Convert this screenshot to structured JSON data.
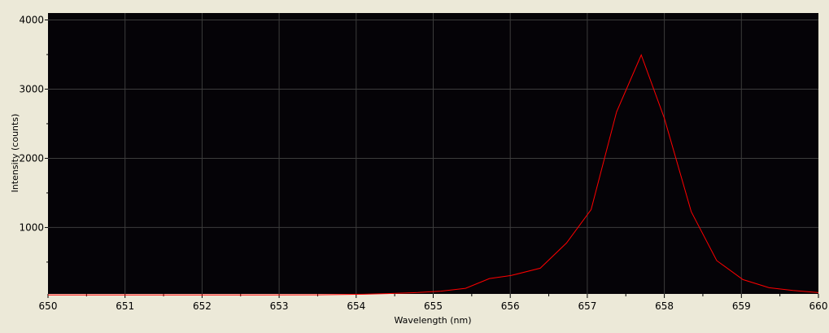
{
  "chart_data": {
    "type": "line",
    "title": "",
    "xlabel": "Wavelength (nm)",
    "ylabel": "Intensity (counts)",
    "xlim": [
      650,
      660
    ],
    "ylim": [
      40,
      4100
    ],
    "xticks": [
      650,
      651,
      652,
      653,
      654,
      655,
      656,
      657,
      658,
      659,
      660
    ],
    "yticks": [
      1000,
      2000,
      3000,
      4000
    ],
    "grid": true,
    "background": "#050307",
    "grid_color": "#3c3c3c",
    "series": [
      {
        "color": "#ff0000",
        "x": [
          650,
          650.7,
          651.4,
          652.1,
          652.8,
          653.5,
          654.1,
          654.4,
          654.8,
          655.1,
          655.42,
          655.73,
          656.01,
          656.39,
          656.73,
          657.05,
          657.38,
          657.7,
          658.0,
          658.35,
          658.68,
          659.02,
          659.36,
          659.67,
          660
        ],
        "y": [
          25,
          25,
          25,
          25,
          25,
          27,
          35,
          45,
          60,
          80,
          121,
          262,
          306,
          412,
          776,
          1259,
          2671,
          3494,
          2580,
          1227,
          521,
          247,
          129,
          89,
          59
        ]
      }
    ]
  }
}
